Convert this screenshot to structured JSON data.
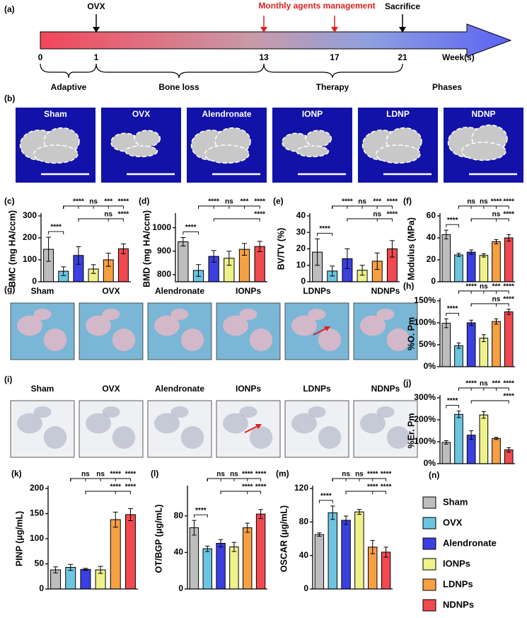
{
  "timeline": {
    "panel": "(a)",
    "ovx": "OVX",
    "agents": "Monthly agents management",
    "sacrifice": "Sacrifice",
    "weeks": [
      0,
      1,
      13,
      17,
      21
    ],
    "unit": "Week(s)",
    "phases": [
      "Adaptive",
      "Bone loss",
      "Therapy",
      "Phases"
    ]
  },
  "panel_b": {
    "panel": "(b)",
    "labels": [
      "Sham",
      "OVX",
      "Alendronate",
      "IONP",
      "LDNP",
      "NDNP"
    ]
  },
  "panel_g": {
    "panel": "(g)",
    "labels": [
      "Sham",
      "OVX",
      "Alendronate",
      "IONPs",
      "LDNPs",
      "NDNPs"
    ]
  },
  "panel_i": {
    "panel": "(i)",
    "labels": [
      "Sham",
      "OVX",
      "Alendronate",
      "IONPs",
      "LDNPs",
      "NDNPs"
    ]
  },
  "legend": {
    "panel": "(n)",
    "items": [
      {
        "name": "Sham",
        "color": "#bdbdbd"
      },
      {
        "name": "OVX",
        "color": "#6cc5df"
      },
      {
        "name": "Alendronate",
        "color": "#3b3fe0"
      },
      {
        "name": "IONPs",
        "color": "#eef28a"
      },
      {
        "name": "LDNPs",
        "color": "#f6a043"
      },
      {
        "name": "NDNPs",
        "color": "#f0494f"
      }
    ]
  },
  "chart_data": [
    {
      "type": "bar",
      "panel": "(c)",
      "ylabel": "BMC (mg HA/ccm)",
      "values": [
        148,
        48,
        120,
        58,
        100,
        150
      ],
      "errors": [
        55,
        20,
        40,
        20,
        30,
        22
      ],
      "ylim": [
        0,
        300
      ],
      "yticks": [
        0,
        100,
        200,
        300
      ],
      "significance": [
        {
          "from": 0,
          "to": 1,
          "label": "****"
        },
        {
          "from": 1,
          "to": 2,
          "label": "****"
        },
        {
          "from": 1,
          "to": 3,
          "label": "ns"
        },
        {
          "from": 1,
          "to": 4,
          "label": "***"
        },
        {
          "from": 1,
          "to": 5,
          "label": "****"
        },
        {
          "from": 2,
          "to": 4,
          "label": "ns"
        },
        {
          "from": 2,
          "to": 5,
          "label": "****"
        }
      ]
    },
    {
      "type": "bar",
      "panel": "(d)",
      "ylabel": "BMD (mg HA/ccm)",
      "values": [
        940,
        818,
        878,
        870,
        908,
        920
      ],
      "errors": [
        18,
        25,
        25,
        30,
        25,
        22
      ],
      "ylim": [
        770,
        1050
      ],
      "yticks": [
        800,
        900,
        1000
      ],
      "significance": [
        {
          "from": 0,
          "to": 1,
          "label": "****"
        },
        {
          "from": 1,
          "to": 2,
          "label": "****"
        },
        {
          "from": 1,
          "to": 3,
          "label": "ns"
        },
        {
          "from": 1,
          "to": 4,
          "label": "***"
        },
        {
          "from": 1,
          "to": 5,
          "label": "****"
        },
        {
          "from": 2,
          "to": 5,
          "label": "****"
        }
      ]
    },
    {
      "type": "bar",
      "panel": "(e)",
      "ylabel": "BV/TV (%)",
      "values": [
        18,
        6.5,
        14,
        7,
        12.5,
        20
      ],
      "errors": [
        8,
        3,
        6,
        3,
        5,
        5
      ],
      "ylim": [
        0,
        40
      ],
      "yticks": [
        0,
        10,
        20,
        30,
        40
      ],
      "significance": [
        {
          "from": 0,
          "to": 1,
          "label": "****"
        },
        {
          "from": 1,
          "to": 2,
          "label": "****"
        },
        {
          "from": 1,
          "to": 3,
          "label": "ns"
        },
        {
          "from": 1,
          "to": 4,
          "label": "***"
        },
        {
          "from": 1,
          "to": 5,
          "label": "****"
        },
        {
          "from": 2,
          "to": 4,
          "label": "ns"
        },
        {
          "from": 2,
          "to": 5,
          "label": "****"
        }
      ]
    },
    {
      "type": "bar",
      "panel": "(f)",
      "ylabel": "Modulus (MPa)",
      "values": [
        43,
        24.5,
        27,
        24,
        36.5,
        40
      ],
      "errors": [
        4,
        1.5,
        2,
        1.5,
        2,
        3
      ],
      "ylim": [
        0,
        60
      ],
      "yticks": [
        0,
        20,
        40,
        60
      ],
      "significance": [
        {
          "from": 0,
          "to": 1,
          "label": "****"
        },
        {
          "from": 1,
          "to": 2,
          "label": "ns"
        },
        {
          "from": 1,
          "to": 3,
          "label": "ns"
        },
        {
          "from": 1,
          "to": 4,
          "label": "****"
        },
        {
          "from": 1,
          "to": 5,
          "label": "****"
        },
        {
          "from": 2,
          "to": 4,
          "label": "ns"
        },
        {
          "from": 2,
          "to": 5,
          "label": "****"
        }
      ]
    },
    {
      "type": "bar",
      "panel": "(h)",
      "ylabel": "%O. Pm",
      "values": [
        99,
        48,
        100,
        65,
        103,
        125
      ],
      "errors": [
        10,
        6,
        6,
        8,
        6,
        6
      ],
      "ylim": [
        0,
        150
      ],
      "yticks": [
        {
          "value": 0,
          "label": "0%"
        },
        {
          "value": 50,
          "label": "50%"
        },
        {
          "value": 100,
          "label": "100%"
        },
        {
          "value": 150,
          "label": "150%"
        }
      ],
      "significance": [
        {
          "from": 0,
          "to": 1,
          "label": "****"
        },
        {
          "from": 1,
          "to": 2,
          "label": "****"
        },
        {
          "from": 1,
          "to": 3,
          "label": "ns"
        },
        {
          "from": 1,
          "to": 4,
          "label": "***"
        },
        {
          "from": 1,
          "to": 5,
          "label": "****"
        },
        {
          "from": 2,
          "to": 4,
          "label": "ns"
        },
        {
          "from": 2,
          "to": 5,
          "label": "****"
        }
      ]
    },
    {
      "type": "bar",
      "panel": "(j)",
      "ylabel": "%Er. Pm",
      "values": [
        97,
        225,
        130,
        222,
        115,
        63
      ],
      "errors": [
        8,
        15,
        20,
        15,
        5,
        10
      ],
      "ylim": [
        0,
        300
      ],
      "yticks": [
        {
          "value": 0,
          "label": "0%"
        },
        {
          "value": 100,
          "label": "100%"
        },
        {
          "value": 200,
          "label": "200%"
        },
        {
          "value": 300,
          "label": "300%"
        }
      ],
      "significance": [
        {
          "from": 0,
          "to": 1,
          "label": "****"
        },
        {
          "from": 1,
          "to": 2,
          "label": "****"
        },
        {
          "from": 1,
          "to": 3,
          "label": "ns"
        },
        {
          "from": 1,
          "to": 4,
          "label": "***"
        },
        {
          "from": 1,
          "to": 5,
          "label": "****"
        },
        {
          "from": 2,
          "to": 5,
          "label": "****"
        }
      ]
    },
    {
      "type": "bar",
      "panel": "(k)",
      "ylabel": "PINP (μg/mL)",
      "values": [
        38,
        43,
        39,
        38,
        138,
        148
      ],
      "errors": [
        6,
        6,
        2,
        7,
        15,
        12
      ],
      "ylim": [
        0,
        200
      ],
      "yticks": [
        0,
        50,
        100,
        150,
        200
      ],
      "significance": [
        {
          "from": 1,
          "to": 2,
          "label": "ns"
        },
        {
          "from": 1,
          "to": 3,
          "label": "ns"
        },
        {
          "from": 1,
          "to": 4,
          "label": "****"
        },
        {
          "from": 1,
          "to": 5,
          "label": "****"
        },
        {
          "from": 2,
          "to": 4,
          "label": "****"
        },
        {
          "from": 2,
          "to": 5,
          "label": "****"
        }
      ]
    },
    {
      "type": "bar",
      "panel": "(l)",
      "ylabel": "OT/BGP (μg/mL)",
      "values": [
        67,
        44,
        50,
        46,
        67,
        82
      ],
      "errors": [
        8,
        3,
        4,
        5,
        5,
        5
      ],
      "ylim": [
        0,
        110
      ],
      "yticks": [
        0,
        40,
        80
      ],
      "significance": [
        {
          "from": 0,
          "to": 1,
          "label": "****"
        },
        {
          "from": 1,
          "to": 2,
          "label": "ns"
        },
        {
          "from": 1,
          "to": 3,
          "label": "ns"
        },
        {
          "from": 1,
          "to": 4,
          "label": "****"
        },
        {
          "from": 1,
          "to": 5,
          "label": "****"
        },
        {
          "from": 2,
          "to": 4,
          "label": "****"
        },
        {
          "from": 2,
          "to": 5,
          "label": "****"
        }
      ]
    },
    {
      "type": "bar",
      "panel": "(m)",
      "ylabel": "OSCAR (μg/mL)",
      "values": [
        65,
        91,
        82,
        92,
        50,
        44
      ],
      "errors": [
        2,
        8,
        5,
        3,
        8,
        6
      ],
      "ylim": [
        0,
        120
      ],
      "yticks": [
        0,
        40,
        80,
        120
      ],
      "significance": [
        {
          "from": 0,
          "to": 1,
          "label": "****"
        },
        {
          "from": 1,
          "to": 2,
          "label": "ns"
        },
        {
          "from": 1,
          "to": 3,
          "label": "ns"
        },
        {
          "from": 1,
          "to": 4,
          "label": "****"
        },
        {
          "from": 1,
          "to": 5,
          "label": "****"
        },
        {
          "from": 2,
          "to": 4,
          "label": "****"
        },
        {
          "from": 2,
          "to": 5,
          "label": "****"
        }
      ]
    }
  ]
}
